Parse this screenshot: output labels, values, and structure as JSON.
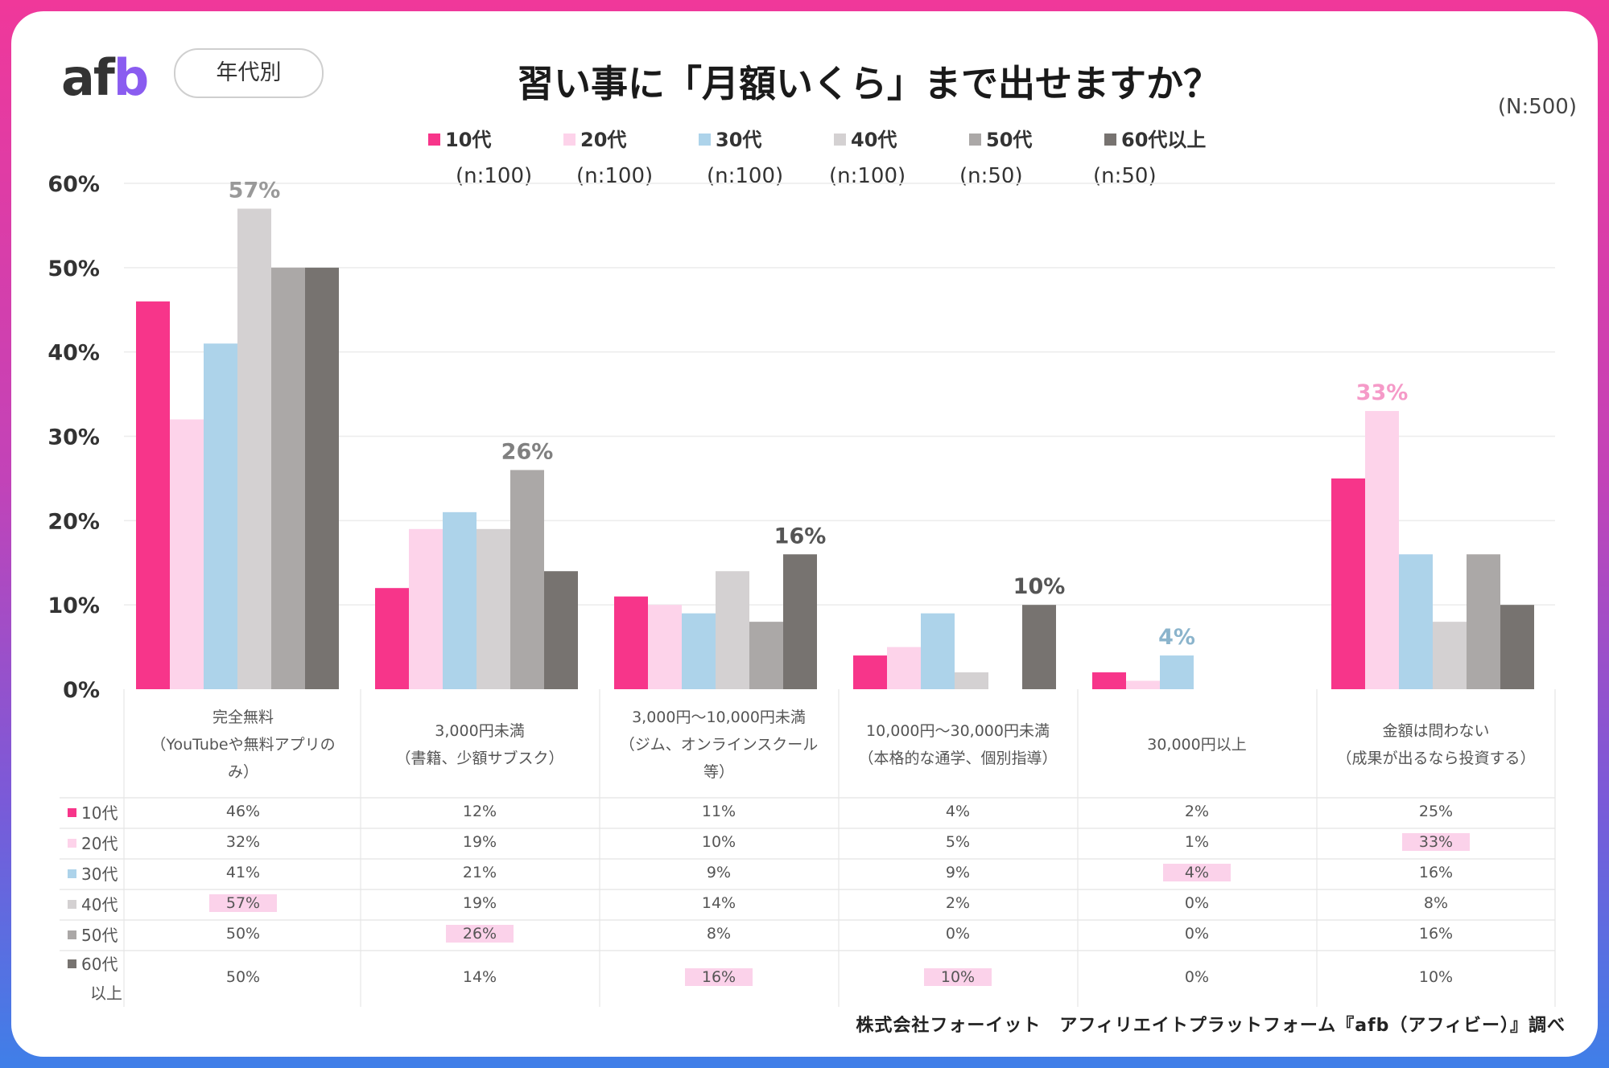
{
  "header": {
    "logo": {
      "a": "a",
      "f": "f",
      "b": "b"
    },
    "badge": "年代別",
    "title": "習い事に「月額いくら」まで出せますか？",
    "total_n": "(N:500)"
  },
  "footer": "株式会社フォーイット　アフィリエイトプラットフォーム『afb（アフィビー）』調べ",
  "chart_data": {
    "type": "bar",
    "title": "習い事に「月額いくら」まで出せますか？",
    "categories": [
      [
        "完全無料",
        "（YouTubeや無料アプリの",
        "み）"
      ],
      [
        "3,000円未満",
        "（書籍、少額サブスク）"
      ],
      [
        "3,000円〜10,000円未満",
        "（ジム、オンラインスクール",
        "等）"
      ],
      [
        "10,000円〜30,000円未満",
        "（本格的な通学、個別指導）"
      ],
      [
        "30,000円以上"
      ],
      [
        "金額は問わない",
        "（成果が出るなら投資する）"
      ]
    ],
    "series": [
      {
        "name": "10代",
        "n": "(n:100)",
        "color": "#f7358a",
        "table_label": [
          "10代"
        ],
        "values": [
          46,
          12,
          11,
          4,
          2,
          25
        ]
      },
      {
        "name": "20代",
        "n": "(n:100)",
        "color": "#fdd3ea",
        "table_label": [
          "20代"
        ],
        "values": [
          32,
          19,
          10,
          5,
          1,
          33
        ]
      },
      {
        "name": "30代",
        "n": "(n:100)",
        "color": "#add3ea",
        "table_label": [
          "30代"
        ],
        "values": [
          41,
          21,
          9,
          9,
          4,
          16
        ]
      },
      {
        "name": "40代",
        "n": "(n:100)",
        "color": "#d4d1d2",
        "table_label": [
          "40代"
        ],
        "values": [
          57,
          19,
          14,
          2,
          0,
          8
        ]
      },
      {
        "name": "50代",
        "n": "(n:50)",
        "color": "#aba8a7",
        "table_label": [
          "50代"
        ],
        "values": [
          50,
          26,
          8,
          0,
          0,
          16
        ]
      },
      {
        "name": "60代以上",
        "n": "(n:50)",
        "color": "#777370",
        "table_label": [
          "60代",
          "以上"
        ],
        "values": [
          50,
          14,
          16,
          10,
          0,
          10
        ]
      }
    ],
    "ylim": [
      0,
      60
    ],
    "yticks": [
      "0%",
      "10%",
      "20%",
      "30%",
      "40%",
      "50%",
      "60%"
    ],
    "grid": true,
    "legend_position": "top",
    "highlights": [
      {
        "category": 0,
        "series": 3,
        "label": "57%",
        "color": "#999999"
      },
      {
        "category": 1,
        "series": 4,
        "label": "26%",
        "color": "#808080"
      },
      {
        "category": 2,
        "series": 5,
        "label": "16%",
        "color": "#555555"
      },
      {
        "category": 3,
        "series": 5,
        "label": "10%",
        "color": "#555555"
      },
      {
        "category": 4,
        "series": 2,
        "label": "4%",
        "color": "#8bb4cc"
      },
      {
        "category": 5,
        "series": 1,
        "label": "33%",
        "color": "#f59ac8"
      }
    ]
  }
}
